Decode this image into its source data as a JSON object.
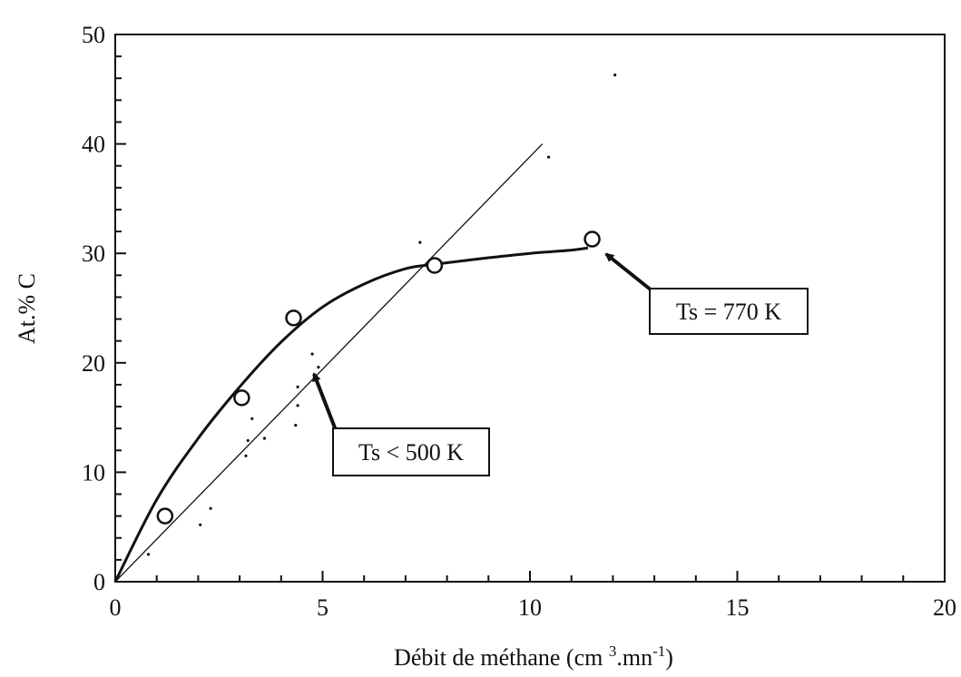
{
  "chart_data": {
    "type": "scatter",
    "xlabel_parts": [
      "Débit de méthane (cm ",
      "3",
      ".mn",
      "-1",
      ")"
    ],
    "ylabel": "At.% C",
    "xlim": [
      0,
      20
    ],
    "ylim": [
      0,
      50
    ],
    "x_ticks": [
      "0",
      "5",
      "10",
      "15",
      "20"
    ],
    "y_ticks": [
      "0",
      "10",
      "20",
      "30",
      "40",
      "50"
    ],
    "grid": false,
    "series": [
      {
        "label": "Ts = 770 K",
        "marker": "open-circle",
        "points": [
          [
            1.2,
            6
          ],
          [
            3.05,
            16.8
          ],
          [
            4.3,
            24.1
          ],
          [
            7.7,
            28.9
          ],
          [
            11.5,
            31.3
          ]
        ],
        "curve": [
          [
            0,
            0
          ],
          [
            1,
            7.5
          ],
          [
            2,
            13.1
          ],
          [
            3,
            17.8
          ],
          [
            4,
            21.9
          ],
          [
            5,
            25.1
          ],
          [
            6,
            27.2
          ],
          [
            7,
            28.6
          ],
          [
            7.7,
            29.0
          ],
          [
            9,
            29.6
          ],
          [
            10,
            30.0
          ],
          [
            11,
            30.3
          ],
          [
            11.4,
            30.5
          ]
        ]
      },
      {
        "label": "Ts < 500 K",
        "marker": "dot",
        "points": [
          [
            0.8,
            2.5
          ],
          [
            2.05,
            5.2
          ],
          [
            2.3,
            6.7
          ],
          [
            3.15,
            11.5
          ],
          [
            3.2,
            12.9
          ],
          [
            3.3,
            14.9
          ],
          [
            3.6,
            13.1
          ],
          [
            4.35,
            14.3
          ],
          [
            4.4,
            16.1
          ],
          [
            4.4,
            17.8
          ],
          [
            4.75,
            20.8
          ],
          [
            4.9,
            19.6
          ],
          [
            7.35,
            31.0
          ],
          [
            10.45,
            38.8
          ],
          [
            12.05,
            46.3
          ]
        ],
        "fit": [
          [
            0,
            0
          ],
          [
            10.3,
            40
          ]
        ]
      }
    ],
    "annotations": [
      {
        "text": "Ts = 770 K",
        "points_to_series": "Ts = 770 K"
      },
      {
        "text": "Ts < 500 K",
        "points_to_series": "Ts < 500 K"
      }
    ]
  }
}
